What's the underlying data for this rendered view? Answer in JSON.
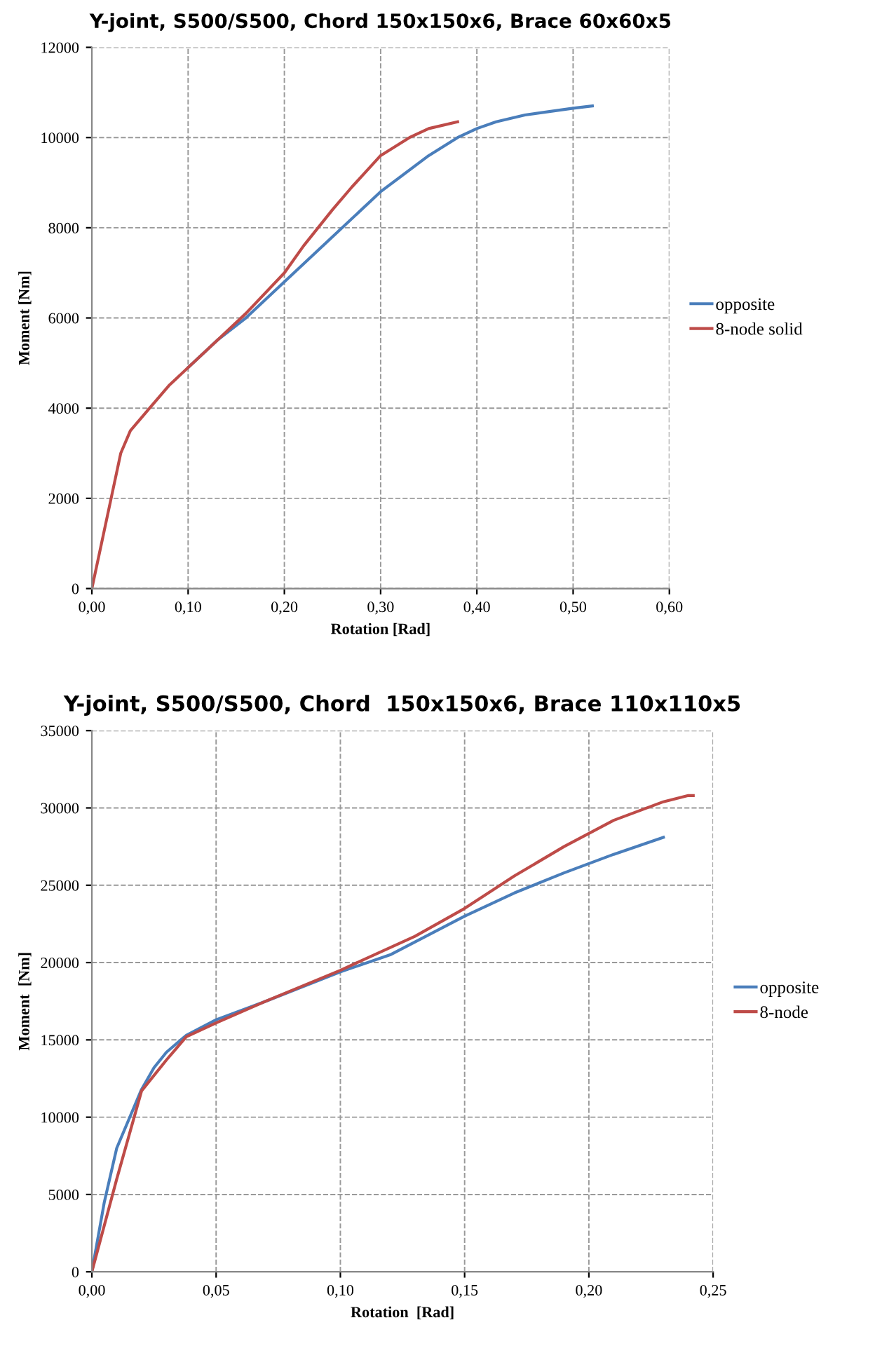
{
  "chart_data": [
    {
      "type": "line",
      "title": "Y-joint, S500/S500, Chord 150x150x6, Brace 60x60x5",
      "xlabel": "Rotation [Rad]",
      "ylabel": "Moment [Nm]",
      "xlim": [
        0,
        0.6
      ],
      "ylim": [
        0,
        12000
      ],
      "xticks": [
        {
          "value": 0,
          "label": "0,00"
        },
        {
          "value": 0.1,
          "label": "0,10"
        },
        {
          "value": 0.2,
          "label": "0,20"
        },
        {
          "value": 0.3,
          "label": "0,30"
        },
        {
          "value": 0.4,
          "label": "0,40"
        },
        {
          "value": 0.5,
          "label": "0,50"
        },
        {
          "value": 0.6,
          "label": "0,60"
        }
      ],
      "yticks": [
        0,
        2000,
        4000,
        6000,
        8000,
        10000,
        12000
      ],
      "grid": true,
      "legend": "right",
      "marker": "none",
      "line_style": "solid",
      "series": [
        {
          "name": "opposite",
          "color": "#4a7ebb",
          "x": [
            0.1,
            0.13,
            0.16,
            0.2,
            0.25,
            0.3,
            0.35,
            0.38,
            0.4,
            0.42,
            0.45,
            0.5,
            0.52
          ],
          "values": [
            4900,
            5500,
            6000,
            6800,
            7800,
            8800,
            9600,
            10000,
            10200,
            10350,
            10500,
            10650,
            10700
          ]
        },
        {
          "name": "8-node solid",
          "color": "#be4b48",
          "x": [
            0,
            0.01,
            0.02,
            0.03,
            0.04,
            0.06,
            0.08,
            0.1,
            0.13,
            0.16,
            0.2,
            0.22,
            0.25,
            0.27,
            0.3,
            0.33,
            0.35,
            0.38
          ],
          "values": [
            0,
            1000,
            2000,
            3000,
            3500,
            4000,
            4500,
            4900,
            5500,
            6100,
            7000,
            7600,
            8400,
            8900,
            9600,
            10000,
            10200,
            10350
          ]
        }
      ]
    },
    {
      "type": "line",
      "title": "Y-joint, S500/S500, Chord  150x150x6, Brace 110x110x5",
      "xlabel": "Rotation  [Rad]",
      "ylabel": "Moment  [Nm]",
      "xlim": [
        0,
        0.25
      ],
      "ylim": [
        0,
        35000
      ],
      "xticks": [
        {
          "value": 0,
          "label": "0,00"
        },
        {
          "value": 0.05,
          "label": "0,05"
        },
        {
          "value": 0.1,
          "label": "0,10"
        },
        {
          "value": 0.15,
          "label": "0,15"
        },
        {
          "value": 0.2,
          "label": "0,20"
        },
        {
          "value": 0.25,
          "label": "0,25"
        }
      ],
      "yticks": [
        0,
        5000,
        10000,
        15000,
        20000,
        25000,
        30000,
        35000
      ],
      "grid": true,
      "legend": "right",
      "marker": "none",
      "line_style": "solid",
      "series": [
        {
          "name": "opposite",
          "color": "#4a7ebb",
          "x": [
            0,
            0.005,
            0.01,
            0.02,
            0.025,
            0.03,
            0.038,
            0.05,
            0.07,
            0.1,
            0.12,
            0.15,
            0.17,
            0.19,
            0.21,
            0.23
          ],
          "values": [
            0,
            4500,
            8000,
            11800,
            13200,
            14200,
            15300,
            16300,
            17500,
            19400,
            20500,
            23000,
            24500,
            25800,
            27000,
            28100
          ]
        },
        {
          "name": "8-node",
          "color": "#be4b48",
          "x": [
            0,
            0.01,
            0.02,
            0.03,
            0.038,
            0.05,
            0.07,
            0.1,
            0.13,
            0.15,
            0.17,
            0.19,
            0.21,
            0.23,
            0.24,
            0.242
          ],
          "values": [
            0,
            6000,
            11700,
            13700,
            15200,
            16100,
            17500,
            19500,
            21700,
            23500,
            25600,
            27500,
            29200,
            30400,
            30800,
            30800
          ]
        }
      ]
    }
  ]
}
